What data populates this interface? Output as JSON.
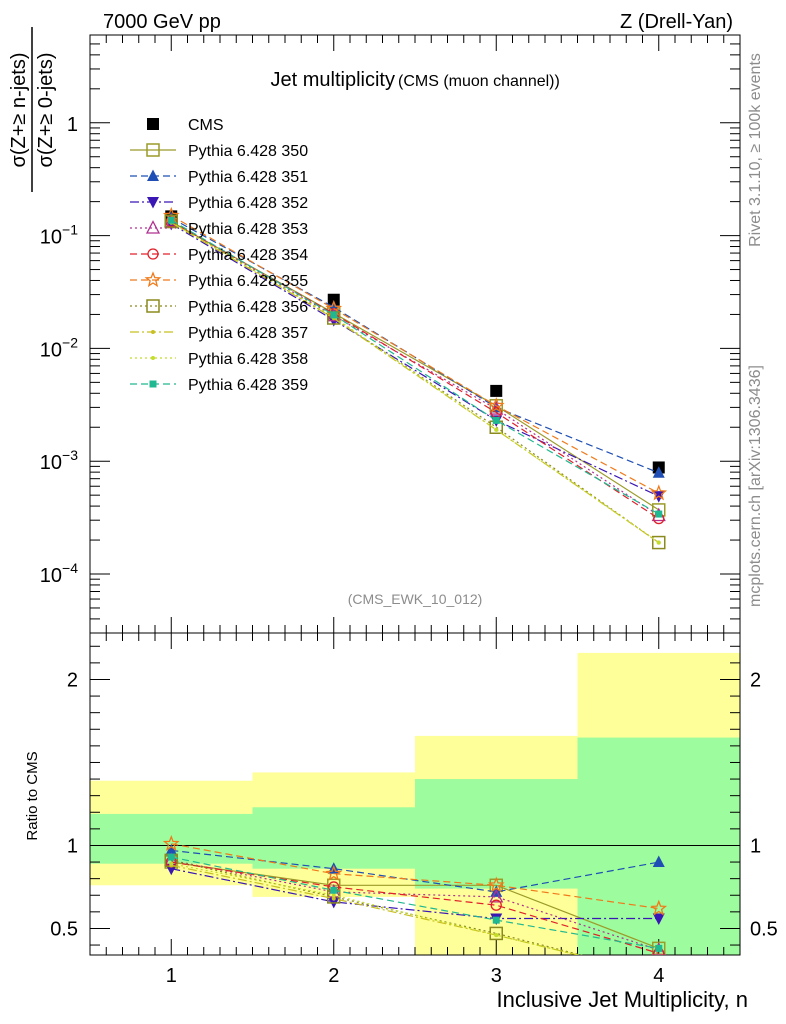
{
  "header": {
    "left": "7000 GeV pp",
    "right": "Z (Drell-Yan)"
  },
  "side_text": {
    "rivet": "Rivet 3.1.10, ≥ 100k events",
    "mcplots": "mcplots.cern.ch [arXiv:1306.3436]"
  },
  "chart_data": [
    {
      "type": "line",
      "panel": "main",
      "title": "Jet multiplicity",
      "subtitle": "(CMS (muon channel))",
      "analysis_tag": "(CMS_EWK_10_012)",
      "ylabel_numerator": "σ(Z+≥ n-jets)",
      "ylabel_denominator": "σ(Z+≥ 0-jets)",
      "yscale": "log",
      "ylim": [
        3e-05,
        6
      ],
      "xlim": [
        0.5,
        4.5
      ],
      "y_ticks": [
        "10^-4",
        "10^-3",
        "10^-2",
        "10^-1",
        "1"
      ],
      "legend_position": "top-left",
      "x": [
        1,
        2,
        3,
        4
      ],
      "series": [
        {
          "name": "CMS",
          "color": "#000000",
          "marker": "square-filled",
          "line": "none",
          "values": [
            0.148,
            0.027,
            0.0042,
            0.00088
          ]
        },
        {
          "name": "Pythia 6.428 350",
          "color": "#9b9b2a",
          "marker": "square-open",
          "line": "solid",
          "values": [
            0.133,
            0.0205,
            0.0031,
            0.00037
          ]
        },
        {
          "name": "Pythia 6.428 351",
          "color": "#1f4fb4",
          "marker": "triangle-up-filled",
          "line": "dashed",
          "values": [
            0.143,
            0.0232,
            0.003,
            0.00079
          ]
        },
        {
          "name": "Pythia 6.428 352",
          "color": "#3a16b5",
          "marker": "triangle-down-filled",
          "line": "dashdot",
          "values": [
            0.127,
            0.0178,
            0.0023,
            0.00049
          ]
        },
        {
          "name": "Pythia 6.428 353",
          "color": "#b03090",
          "marker": "triangle-up-open",
          "line": "dotted",
          "values": [
            0.134,
            0.0195,
            0.0029,
            0.00033
          ]
        },
        {
          "name": "Pythia 6.428 354",
          "color": "#e0202a",
          "marker": "circle-open",
          "line": "dashed",
          "values": [
            0.133,
            0.0203,
            0.0027,
            0.00031
          ]
        },
        {
          "name": "Pythia 6.428 355",
          "color": "#f07a1a",
          "marker": "star-open",
          "line": "dashed",
          "values": [
            0.15,
            0.0225,
            0.0031,
            0.00052
          ]
        },
        {
          "name": "Pythia 6.428 356",
          "color": "#8a8a1e",
          "marker": "square-open",
          "line": "dotted",
          "values": [
            0.134,
            0.0186,
            0.002,
            0.00019
          ]
        },
        {
          "name": "Pythia 6.428 357",
          "color": "#c8c020",
          "marker": "dot",
          "line": "dashdot",
          "values": [
            0.13,
            0.0185,
            0.0019,
            0.00019
          ]
        },
        {
          "name": "Pythia 6.428 358",
          "color": "#c4dc2a",
          "marker": "dot",
          "line": "dotted",
          "values": [
            0.131,
            0.019,
            0.0019,
            0.00019
          ]
        },
        {
          "name": "Pythia 6.428 359",
          "color": "#20b890",
          "marker": "square-small-filled",
          "line": "dashed",
          "values": [
            0.137,
            0.0198,
            0.0023,
            0.00034
          ]
        }
      ]
    },
    {
      "type": "line",
      "panel": "ratio",
      "ylabel": "Ratio to CMS",
      "xlabel": "Inclusive Jet Multiplicity, n",
      "ylim": [
        0.34,
        2.28
      ],
      "xlim": [
        0.5,
        4.5
      ],
      "x_ticks": [
        "1",
        "2",
        "3",
        "4"
      ],
      "y_ticks": [
        "0.5",
        "1",
        "2"
      ],
      "reference": 1,
      "bands": [
        {
          "x_range": [
            0.5,
            1.5
          ],
          "yellow": [
            0.76,
            1.39
          ],
          "green": [
            0.89,
            1.19
          ]
        },
        {
          "x_range": [
            1.5,
            2.5
          ],
          "yellow": [
            0.69,
            1.44
          ],
          "green": [
            0.86,
            1.23
          ]
        },
        {
          "x_range": [
            2.5,
            3.5
          ],
          "yellow": [
            0.34,
            1.66
          ],
          "green": [
            0.74,
            1.4
          ]
        },
        {
          "x_range": [
            3.5,
            4.5
          ],
          "yellow": [
            0.34,
            2.16
          ],
          "green": [
            0.34,
            1.65
          ]
        }
      ],
      "x": [
        1,
        2,
        3,
        4
      ],
      "series": [
        {
          "name": "Pythia 6.428 350",
          "values": [
            0.9,
            0.76,
            0.76,
            0.38
          ]
        },
        {
          "name": "Pythia 6.428 351",
          "values": [
            0.97,
            0.86,
            0.72,
            0.9
          ]
        },
        {
          "name": "Pythia 6.428 352",
          "values": [
            0.86,
            0.66,
            0.56,
            0.56
          ]
        },
        {
          "name": "Pythia 6.428 353",
          "values": [
            0.91,
            0.72,
            0.69,
            0.37
          ]
        },
        {
          "name": "Pythia 6.428 354",
          "values": [
            0.9,
            0.75,
            0.64,
            0.35
          ]
        },
        {
          "name": "Pythia 6.428 355",
          "values": [
            1.01,
            0.83,
            0.76,
            0.62
          ]
        },
        {
          "name": "Pythia 6.428 356",
          "values": [
            0.91,
            0.69,
            0.47,
            0.22
          ]
        },
        {
          "name": "Pythia 6.428 357",
          "values": [
            0.88,
            0.68,
            0.46,
            0.22
          ]
        },
        {
          "name": "Pythia 6.428 358",
          "values": [
            0.89,
            0.7,
            0.46,
            0.22
          ]
        },
        {
          "name": "Pythia 6.428 359",
          "values": [
            0.93,
            0.73,
            0.55,
            0.38
          ]
        }
      ]
    }
  ]
}
